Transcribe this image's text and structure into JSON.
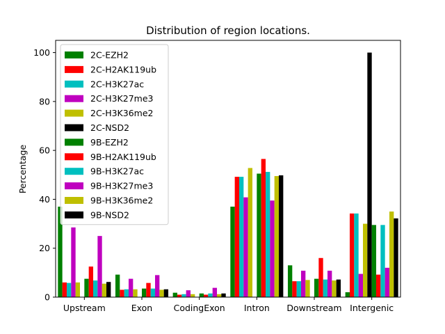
{
  "chart_data": {
    "type": "bar",
    "title": "Distribution of region locations.",
    "xlabel": "",
    "ylabel": "Percentage",
    "ylim": [
      0,
      105
    ],
    "yticks": [
      0,
      20,
      40,
      60,
      80,
      100
    ],
    "grid": false,
    "legend_position": "top-left",
    "categories": [
      "Upstream",
      "Exon",
      "CodingExon",
      "Intron",
      "Downstream",
      "Intergenic"
    ],
    "series": [
      {
        "name": "2C-EZH2",
        "color": "#008000",
        "values": [
          37.0,
          9.2,
          1.8,
          37.0,
          13.0,
          2.0
        ]
      },
      {
        "name": "2C-H2AK119ub",
        "color": "#ff0000",
        "values": [
          6.0,
          3.0,
          1.0,
          49.2,
          6.5,
          34.2
        ]
      },
      {
        "name": "2C-H3K27ac",
        "color": "#00bfbf",
        "values": [
          5.8,
          3.2,
          1.2,
          49.2,
          6.5,
          34.2
        ]
      },
      {
        "name": "2C-H3K27me3",
        "color": "#bf00bf",
        "values": [
          28.5,
          7.5,
          2.8,
          40.8,
          10.8,
          9.5
        ]
      },
      {
        "name": "2C-H3K36me2",
        "color": "#bfbf00",
        "values": [
          6.0,
          3.2,
          1.2,
          52.8,
          7.0,
          30.0
        ]
      },
      {
        "name": "2C-NSD2",
        "color": "#000000",
        "values": [
          0.0,
          0.0,
          0.0,
          0.0,
          0.0,
          100.0
        ]
      },
      {
        "name": "9B-EZH2",
        "color": "#008000",
        "values": [
          7.5,
          3.5,
          1.5,
          50.5,
          7.5,
          29.5
        ]
      },
      {
        "name": "9B-H2AK119ub",
        "color": "#ff0000",
        "values": [
          12.5,
          5.8,
          1.0,
          56.5,
          16.0,
          9.2
        ]
      },
      {
        "name": "9B-H3K27ac",
        "color": "#00bfbf",
        "values": [
          6.8,
          3.5,
          1.5,
          51.2,
          7.2,
          29.5
        ]
      },
      {
        "name": "9B-H3K27me3",
        "color": "#bf00bf",
        "values": [
          25.0,
          9.0,
          3.8,
          39.5,
          10.8,
          12.0
        ]
      },
      {
        "name": "9B-H3K36me2",
        "color": "#bfbf00",
        "values": [
          5.5,
          3.0,
          1.2,
          49.5,
          6.8,
          35.0
        ]
      },
      {
        "name": "9B-NSD2",
        "color": "#000000",
        "values": [
          6.2,
          3.2,
          1.5,
          49.8,
          7.2,
          32.2
        ]
      }
    ]
  }
}
